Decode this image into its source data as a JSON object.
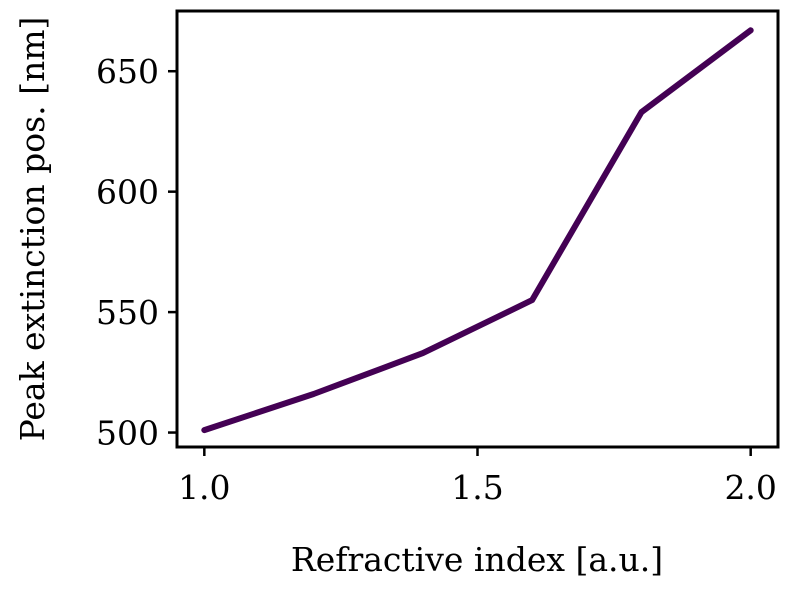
{
  "chart_data": {
    "type": "line",
    "title": "",
    "xlabel": "Refractive index [a.u.]",
    "ylabel": "Peak extinction pos. [nm]",
    "xlim": [
      0.95,
      2.05
    ],
    "ylim": [
      494,
      675
    ],
    "x_ticks": [
      1.0,
      1.5,
      2.0
    ],
    "x_tick_labels": [
      "1.0",
      "1.5",
      "2.0"
    ],
    "y_ticks": [
      500,
      550,
      600,
      650
    ],
    "y_tick_labels": [
      "500",
      "550",
      "600",
      "650"
    ],
    "grid": false,
    "legend": "none",
    "series": [
      {
        "color": "#440154",
        "x": [
          1.0,
          1.2,
          1.4,
          1.6,
          1.8,
          2.0
        ],
        "y": [
          501,
          516,
          533,
          555,
          633,
          667
        ]
      }
    ]
  }
}
